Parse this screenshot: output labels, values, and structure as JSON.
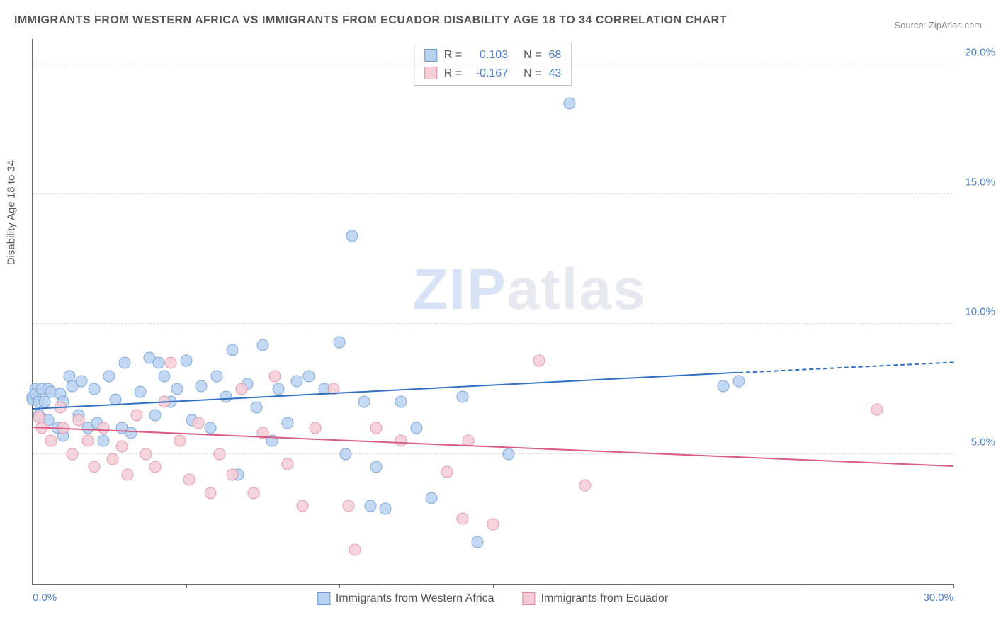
{
  "title": "IMMIGRANTS FROM WESTERN AFRICA VS IMMIGRANTS FROM ECUADOR DISABILITY AGE 18 TO 34 CORRELATION CHART",
  "source": "Source: ZipAtlas.com",
  "watermark_a": "ZIP",
  "watermark_b": "atlas",
  "chart": {
    "type": "scatter",
    "y_axis_title": "Disability Age 18 to 34",
    "xlim": [
      0,
      30
    ],
    "ylim": [
      0,
      21
    ],
    "x_ticks": [
      0,
      5,
      10,
      15,
      20,
      25,
      30
    ],
    "x_tick_labels_shown": {
      "0": "0.0%",
      "30": "30.0%"
    },
    "y_gridlines": [
      5,
      10,
      15,
      20
    ],
    "y_tick_labels": {
      "5": "5.0%",
      "10": "10.0%",
      "15": "15.0%",
      "20": "20.0%"
    },
    "background_color": "#ffffff",
    "grid_color": "#dddddd",
    "axis_color": "#666666",
    "label_color": "#4a7ec9",
    "marker_radius": 8.5,
    "marker_stroke_width": 1,
    "series": [
      {
        "name": "Immigrants from Western Africa",
        "fill": "#b9d2f0",
        "stroke": "#6a9bd6",
        "trend_color": "#2f6fc3",
        "R": "0.103",
        "N": "68",
        "trend": {
          "x1": 0,
          "y1": 6.7,
          "x2": 23,
          "y2": 8.1,
          "dash_to_x": 30,
          "dash_to_y": 8.5
        },
        "points": [
          [
            0.0,
            7.2
          ],
          [
            0.0,
            7.1
          ],
          [
            0.1,
            7.5
          ],
          [
            0.1,
            7.3
          ],
          [
            0.2,
            6.5
          ],
          [
            0.2,
            7.0
          ],
          [
            0.3,
            7.5
          ],
          [
            0.4,
            7.0
          ],
          [
            0.5,
            6.3
          ],
          [
            0.5,
            7.5
          ],
          [
            0.6,
            7.4
          ],
          [
            0.8,
            6.0
          ],
          [
            0.9,
            7.3
          ],
          [
            1.0,
            7.0
          ],
          [
            1.0,
            5.7
          ],
          [
            1.2,
            8.0
          ],
          [
            1.3,
            7.6
          ],
          [
            1.5,
            6.5
          ],
          [
            1.6,
            7.8
          ],
          [
            1.8,
            6.0
          ],
          [
            2.0,
            7.5
          ],
          [
            2.1,
            6.2
          ],
          [
            2.3,
            5.5
          ],
          [
            2.5,
            8.0
          ],
          [
            2.7,
            7.1
          ],
          [
            2.9,
            6.0
          ],
          [
            3.0,
            8.5
          ],
          [
            3.2,
            5.8
          ],
          [
            3.5,
            7.4
          ],
          [
            3.8,
            8.7
          ],
          [
            4.0,
            6.5
          ],
          [
            4.1,
            8.5
          ],
          [
            4.3,
            8.0
          ],
          [
            4.5,
            7.0
          ],
          [
            4.7,
            7.5
          ],
          [
            5.0,
            8.6
          ],
          [
            5.2,
            6.3
          ],
          [
            5.5,
            7.6
          ],
          [
            5.8,
            6.0
          ],
          [
            6.0,
            8.0
          ],
          [
            6.3,
            7.2
          ],
          [
            6.5,
            9.0
          ],
          [
            6.7,
            4.2
          ],
          [
            7.0,
            7.7
          ],
          [
            7.3,
            6.8
          ],
          [
            7.5,
            9.2
          ],
          [
            7.8,
            5.5
          ],
          [
            8.0,
            7.5
          ],
          [
            8.3,
            6.2
          ],
          [
            8.6,
            7.8
          ],
          [
            9.0,
            8.0
          ],
          [
            9.5,
            7.5
          ],
          [
            10.0,
            9.3
          ],
          [
            10.2,
            5.0
          ],
          [
            10.4,
            13.4
          ],
          [
            10.8,
            7.0
          ],
          [
            11.0,
            3.0
          ],
          [
            11.2,
            4.5
          ],
          [
            11.5,
            2.9
          ],
          [
            12.0,
            7.0
          ],
          [
            12.5,
            6.0
          ],
          [
            13.0,
            3.3
          ],
          [
            14.0,
            7.2
          ],
          [
            14.5,
            1.6
          ],
          [
            15.5,
            5.0
          ],
          [
            17.5,
            18.5
          ],
          [
            22.5,
            7.6
          ],
          [
            23.0,
            7.8
          ]
        ]
      },
      {
        "name": "Immigrants from Ecuador",
        "fill": "#f5cdd7",
        "stroke": "#e08aa2",
        "trend_color": "#d95b82",
        "R": "-0.167",
        "N": "43",
        "trend": {
          "x1": 0,
          "y1": 6.0,
          "x2": 30,
          "y2": 4.5
        },
        "points": [
          [
            0.2,
            6.4
          ],
          [
            0.3,
            6.0
          ],
          [
            0.6,
            5.5
          ],
          [
            0.9,
            6.8
          ],
          [
            1.0,
            6.0
          ],
          [
            1.3,
            5.0
          ],
          [
            1.5,
            6.3
          ],
          [
            1.8,
            5.5
          ],
          [
            2.0,
            4.5
          ],
          [
            2.3,
            6.0
          ],
          [
            2.6,
            4.8
          ],
          [
            2.9,
            5.3
          ],
          [
            3.1,
            4.2
          ],
          [
            3.4,
            6.5
          ],
          [
            3.7,
            5.0
          ],
          [
            4.0,
            4.5
          ],
          [
            4.3,
            7.0
          ],
          [
            4.5,
            8.5
          ],
          [
            4.8,
            5.5
          ],
          [
            5.1,
            4.0
          ],
          [
            5.4,
            6.2
          ],
          [
            5.8,
            3.5
          ],
          [
            6.1,
            5.0
          ],
          [
            6.5,
            4.2
          ],
          [
            6.8,
            7.5
          ],
          [
            7.2,
            3.5
          ],
          [
            7.5,
            5.8
          ],
          [
            7.9,
            8.0
          ],
          [
            8.3,
            4.6
          ],
          [
            8.8,
            3.0
          ],
          [
            9.2,
            6.0
          ],
          [
            9.8,
            7.5
          ],
          [
            10.3,
            3.0
          ],
          [
            10.5,
            1.3
          ],
          [
            11.2,
            6.0
          ],
          [
            12.0,
            5.5
          ],
          [
            13.5,
            4.3
          ],
          [
            14.0,
            2.5
          ],
          [
            14.2,
            5.5
          ],
          [
            15.0,
            2.3
          ],
          [
            16.5,
            8.6
          ],
          [
            18.0,
            3.8
          ],
          [
            27.5,
            6.7
          ]
        ]
      }
    ],
    "legend_top": [
      {
        "swatch_fill": "#b9d2f0",
        "swatch_stroke": "#6a9bd6",
        "r_label": "R =",
        "r_val": "0.103",
        "n_label": "N =",
        "n_val": "68"
      },
      {
        "swatch_fill": "#f5cdd7",
        "swatch_stroke": "#e08aa2",
        "r_label": "R =",
        "r_val": "-0.167",
        "n_label": "N =",
        "n_val": "43"
      }
    ],
    "legend_bottom": [
      {
        "swatch_fill": "#b9d2f0",
        "swatch_stroke": "#6a9bd6",
        "label": "Immigrants from Western Africa"
      },
      {
        "swatch_fill": "#f5cdd7",
        "swatch_stroke": "#e08aa2",
        "label": "Immigrants from Ecuador"
      }
    ]
  }
}
